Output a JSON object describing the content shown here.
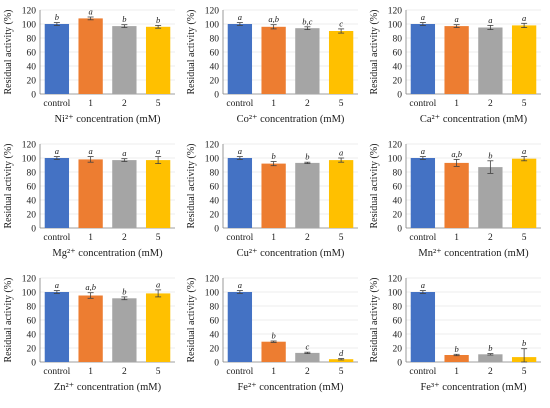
{
  "colors": {
    "bar": [
      "#4472C4",
      "#ED7D31",
      "#A5A5A5",
      "#FFC000"
    ]
  },
  "chart_data": [
    {
      "type": "bar",
      "xlabel": "Ni²⁺ concentration (mM)",
      "ylabel": "Residual activity (%)",
      "ylim": [
        0,
        120
      ],
      "yticks": [
        "0",
        "20",
        "40",
        "60",
        "80",
        "100",
        "120"
      ],
      "categories": [
        "control",
        "1",
        "2",
        "5"
      ],
      "values": [
        100,
        108,
        97,
        96
      ],
      "errors": [
        2,
        2,
        2,
        2
      ],
      "sig": [
        "b",
        "a",
        "b",
        "b"
      ]
    },
    {
      "type": "bar",
      "xlabel": "Co²⁺ concentration (mM)",
      "ylabel": "Residual activity (%)",
      "ylim": [
        0,
        120
      ],
      "yticks": [
        "0",
        "20",
        "40",
        "60",
        "80",
        "100",
        "120"
      ],
      "categories": [
        "control",
        "1",
        "2",
        "5"
      ],
      "values": [
        100,
        96,
        94,
        90
      ],
      "errors": [
        2,
        3,
        2,
        3
      ],
      "sig": [
        "a",
        "a,b",
        "b,c",
        "c"
      ]
    },
    {
      "type": "bar",
      "xlabel": "Ca²⁺ concentration (mM)",
      "ylabel": "Residual activity (%)",
      "ylim": [
        0,
        120
      ],
      "yticks": [
        "0",
        "20",
        "40",
        "60",
        "80",
        "100",
        "120"
      ],
      "categories": [
        "control",
        "1",
        "2",
        "5"
      ],
      "values": [
        100,
        97,
        95,
        98
      ],
      "errors": [
        2,
        2,
        3,
        3
      ],
      "sig": [
        "a",
        "a",
        "a",
        "a"
      ]
    },
    {
      "type": "bar",
      "xlabel": "Mg²⁺ concentration (mM)",
      "ylabel": "Residual activity (%)",
      "ylim": [
        0,
        120
      ],
      "yticks": [
        "0",
        "20",
        "40",
        "60",
        "80",
        "100",
        "120"
      ],
      "categories": [
        "control",
        "1",
        "2",
        "5"
      ],
      "values": [
        100,
        98,
        97,
        97
      ],
      "errors": [
        2,
        4,
        2,
        5
      ],
      "sig": [
        "a",
        "a",
        "a",
        "a"
      ]
    },
    {
      "type": "bar",
      "xlabel": "Cu²⁺ concentration (mM)",
      "ylabel": "Residual activity (%)",
      "ylim": [
        0,
        120
      ],
      "yticks": [
        "0",
        "20",
        "40",
        "60",
        "80",
        "100",
        "120"
      ],
      "categories": [
        "control",
        "1",
        "2",
        "5"
      ],
      "values": [
        100,
        92,
        93,
        97
      ],
      "errors": [
        2,
        3,
        1,
        3
      ],
      "sig": [
        "a",
        "b",
        "b",
        "a"
      ]
    },
    {
      "type": "bar",
      "xlabel": "Mn²⁺ concentration (mM)",
      "ylabel": "Residual activity (%)",
      "ylim": [
        0,
        120
      ],
      "yticks": [
        "0",
        "20",
        "40",
        "60",
        "80",
        "100",
        "120"
      ],
      "categories": [
        "control",
        "1",
        "2",
        "5"
      ],
      "values": [
        100,
        93,
        87,
        99
      ],
      "errors": [
        2,
        5,
        9,
        3
      ],
      "sig": [
        "a",
        "a,b",
        "b",
        "a"
      ]
    },
    {
      "type": "bar",
      "xlabel": "Zn²⁺ concentration (mM)",
      "ylabel": "Residual activity (%)",
      "ylim": [
        0,
        120
      ],
      "yticks": [
        "0",
        "20",
        "40",
        "60",
        "80",
        "100",
        "120"
      ],
      "categories": [
        "control",
        "1",
        "2",
        "5"
      ],
      "values": [
        100,
        95,
        91,
        98
      ],
      "errors": [
        2,
        4,
        2,
        5
      ],
      "sig": [
        "a",
        "a,b",
        "b",
        "a"
      ]
    },
    {
      "type": "bar",
      "xlabel": "Fe²⁺ concentration (mM)",
      "ylabel": "Residual activity (%)",
      "ylim": [
        0,
        120
      ],
      "yticks": [
        "0",
        "20",
        "40",
        "60",
        "80",
        "100",
        "120"
      ],
      "categories": [
        "control",
        "1",
        "2",
        "5"
      ],
      "values": [
        100,
        29,
        13,
        4
      ],
      "errors": [
        2,
        1,
        1,
        1
      ],
      "sig": [
        "a",
        "b",
        "c",
        "d"
      ]
    },
    {
      "type": "bar",
      "xlabel": "Fe³⁺ concentration (mM)",
      "ylabel": "Residual activity (%)",
      "ylim": [
        0,
        120
      ],
      "yticks": [
        "0",
        "20",
        "40",
        "60",
        "80",
        "100",
        "120"
      ],
      "categories": [
        "control",
        "1",
        "2",
        "5"
      ],
      "values": [
        100,
        10,
        11,
        7
      ],
      "errors": [
        2,
        1,
        1,
        12
      ],
      "sig": [
        "a",
        "b",
        "b",
        "b"
      ]
    }
  ]
}
